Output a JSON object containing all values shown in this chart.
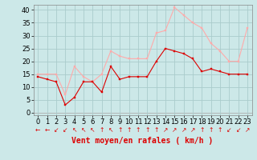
{
  "hours": [
    0,
    1,
    2,
    3,
    4,
    5,
    6,
    7,
    8,
    9,
    10,
    11,
    12,
    13,
    14,
    15,
    16,
    17,
    18,
    19,
    20,
    21,
    22,
    23
  ],
  "vent_moyen": [
    14,
    13,
    12,
    3,
    6,
    12,
    12,
    8,
    18,
    13,
    14,
    14,
    14,
    20,
    25,
    24,
    23,
    21,
    16,
    17,
    16,
    15,
    15,
    15
  ],
  "rafales": [
    15,
    15,
    15,
    7,
    18,
    14,
    12,
    15,
    24,
    22,
    21,
    21,
    21,
    31,
    32,
    41,
    38,
    35,
    33,
    27,
    24,
    20,
    20,
    33
  ],
  "bg_color": "#cce8e8",
  "grid_color": "#aacccc",
  "line_moyen_color": "#dd0000",
  "line_rafales_color": "#ffaaaa",
  "xlabel": "Vent moyen/en rafales ( km/h )",
  "ylabel_ticks": [
    0,
    5,
    10,
    15,
    20,
    25,
    30,
    35,
    40
  ],
  "ylim": [
    -1,
    42
  ],
  "xlim": [
    -0.5,
    23.5
  ],
  "tick_fontsize": 6,
  "xlabel_fontsize": 7,
  "arrow_symbols": [
    "←",
    "←",
    "↙",
    "↙",
    "↖",
    "↖",
    "↖",
    "↑",
    "↖",
    "↑",
    "↑",
    "↑",
    "↑",
    "↑",
    "↗",
    "↗",
    "↗",
    "↗",
    "↑",
    "↑",
    "↑",
    "↙",
    "↙",
    "↗"
  ]
}
